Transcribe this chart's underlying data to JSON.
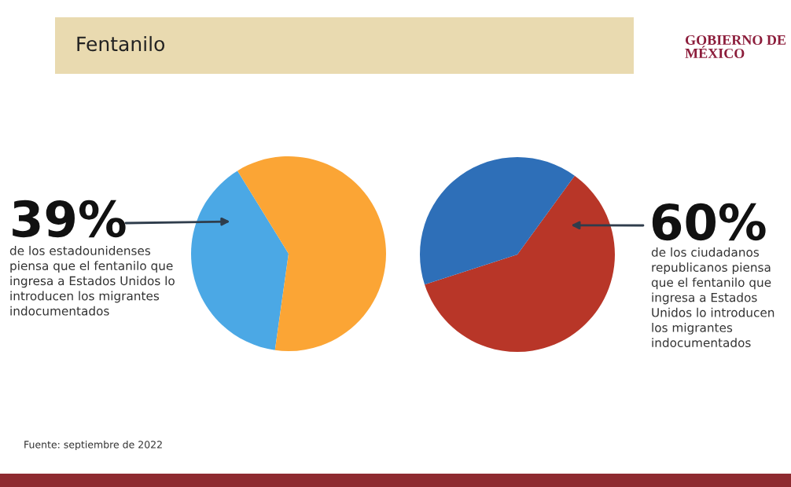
{
  "chart_data": [
    {
      "type": "pie",
      "title": "Fentanilo",
      "categories": [
        null,
        null
      ],
      "values": [
        39,
        61
      ],
      "colors": [
        "#4ba8e5",
        "#fba535"
      ],
      "value_labels": [
        "39%",
        null
      ],
      "annotations": [
        "de los estadounidenses\npiensa que el fentanilo que\ningresa a Estados Unidos lo\nintroducen los migrantes\nindocumentados",
        "Fuente: septiembre de 2022",
        "GOBIERNO DE\nMÉXICO"
      ]
    },
    {
      "type": "pie",
      "categories": [
        null,
        null
      ],
      "values": [
        60,
        40
      ],
      "colors": [
        "#b83628",
        "#2e6fb8"
      ],
      "value_labels": [
        "60%",
        null
      ],
      "annotations": [
        "de los ciudadanos\nrepublicanos piensa\nque el fentanilo que\ningresa a Estados\nUnidos lo introducen\nlos migrantes\nindocumentados"
      ]
    }
  ]
}
